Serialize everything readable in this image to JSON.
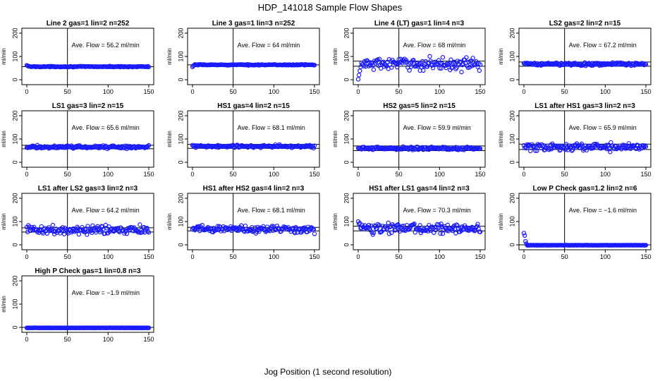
{
  "figure": {
    "title": "HDP_141018  Sample Flow Shapes",
    "xlabel": "Jog Position (1 second resolution)"
  },
  "chart_data": [
    {
      "type": "scatter",
      "title": "Line 2 gas=1 lin=2 n=252",
      "annotation": "Ave. Flow =  56.2  ml/min",
      "ylabel": "ml/min",
      "xlim": [
        0,
        150
      ],
      "ylim": [
        0,
        200
      ],
      "xticks": [
        0,
        50,
        100,
        150
      ],
      "yticks": [
        0,
        100,
        200
      ],
      "vline_x": 50,
      "hlines": [
        56.2
      ],
      "pattern": {
        "base": 56.2,
        "noise": 2,
        "start_values": [
          62,
          60,
          58
        ]
      }
    },
    {
      "type": "scatter",
      "title": "Line 3 gas=1 lin=3 n=252",
      "annotation": "Ave. Flow =  64  ml/min",
      "ylabel": "ml/min",
      "xlim": [
        0,
        150
      ],
      "ylim": [
        0,
        200
      ],
      "xticks": [
        0,
        50,
        100,
        150
      ],
      "yticks": [
        0,
        100,
        200
      ],
      "vline_x": 50,
      "hlines": [
        64
      ],
      "pattern": {
        "base": 64,
        "noise": 2,
        "start_values": [
          55,
          60,
          62
        ]
      }
    },
    {
      "type": "scatter",
      "title": "Line 4 (LT) gas=1 lin=4 n=3",
      "annotation": "Ave. Flow =  68  ml/min",
      "ylabel": "ml/min",
      "xlim": [
        0,
        150
      ],
      "ylim": [
        0,
        200
      ],
      "xticks": [
        0,
        50,
        100,
        150
      ],
      "yticks": [
        0,
        100,
        200
      ],
      "vline_x": 50,
      "hlines": [
        80,
        58
      ],
      "pattern": {
        "base": 68,
        "noise": 28,
        "start_values": [
          2,
          20,
          38,
          55
        ]
      }
    },
    {
      "type": "scatter",
      "title": "LS2 gas=2 lin=2 n=15",
      "annotation": "Ave. Flow =  67.2  ml/min",
      "ylabel": "ml/min",
      "xlim": [
        0,
        150
      ],
      "ylim": [
        0,
        200
      ],
      "xticks": [
        0,
        50,
        100,
        150
      ],
      "yticks": [
        0,
        100,
        200
      ],
      "vline_x": 50,
      "hlines": [
        76,
        58
      ],
      "pattern": {
        "base": 67.2,
        "noise": 7,
        "start_values": []
      }
    },
    {
      "type": "scatter",
      "title": "LS1 gas=3 lin=2 n=15",
      "annotation": "Ave. Flow =  65.6  ml/min",
      "ylabel": "ml/min",
      "xlim": [
        0,
        150
      ],
      "ylim": [
        0,
        200
      ],
      "xticks": [
        0,
        50,
        100,
        150
      ],
      "yticks": [
        0,
        100,
        200
      ],
      "vline_x": 50,
      "hlines": [
        73,
        58
      ],
      "pattern": {
        "base": 65.6,
        "noise": 7,
        "start_values": []
      }
    },
    {
      "type": "scatter",
      "title": "HS1 gas=4 lin=2 n=15",
      "annotation": "Ave. Flow =  68.1  ml/min",
      "ylabel": "ml/min",
      "xlim": [
        0,
        150
      ],
      "ylim": [
        0,
        200
      ],
      "xticks": [
        0,
        50,
        100,
        150
      ],
      "yticks": [
        0,
        100,
        200
      ],
      "vline_x": 50,
      "hlines": [
        77,
        60
      ],
      "pattern": {
        "base": 68.1,
        "noise": 7,
        "start_values": []
      }
    },
    {
      "type": "scatter",
      "title": "HS2 gas=5 lin=2 n=15",
      "annotation": "Ave. Flow =  59.9  ml/min",
      "ylabel": "ml/min",
      "xlim": [
        0,
        150
      ],
      "ylim": [
        0,
        200
      ],
      "xticks": [
        0,
        50,
        100,
        150
      ],
      "yticks": [
        0,
        100,
        200
      ],
      "vline_x": 50,
      "hlines": [
        70,
        50
      ],
      "pattern": {
        "base": 59.9,
        "noise": 7,
        "start_values": []
      }
    },
    {
      "type": "scatter",
      "title": "LS1 after HS1 gas=3 lin=2 n=3",
      "annotation": "Ave. Flow =  65.9  ml/min",
      "ylabel": "ml/min",
      "xlim": [
        0,
        150
      ],
      "ylim": [
        0,
        200
      ],
      "xticks": [
        0,
        50,
        100,
        150
      ],
      "yticks": [
        0,
        100,
        200
      ],
      "vline_x": 50,
      "hlines": [
        78,
        55
      ],
      "pattern": {
        "base": 65.9,
        "noise": 18,
        "start_values": []
      }
    },
    {
      "type": "scatter",
      "title": "LS1 after LS2 gas=3 lin=2 n=3",
      "annotation": "Ave. Flow =  64.2  ml/min",
      "ylabel": "ml/min",
      "xlim": [
        0,
        150
      ],
      "ylim": [
        0,
        200
      ],
      "xticks": [
        0,
        50,
        100,
        150
      ],
      "yticks": [
        0,
        100,
        200
      ],
      "vline_x": 50,
      "hlines": [
        73,
        55
      ],
      "pattern": {
        "base": 64.2,
        "noise": 20,
        "start_values": []
      }
    },
    {
      "type": "scatter",
      "title": "HS1 after HS2 gas=4 lin=2 n=3",
      "annotation": "Ave. Flow =  68.1  ml/min",
      "ylabel": "ml/min",
      "xlim": [
        0,
        150
      ],
      "ylim": [
        0,
        200
      ],
      "xticks": [
        0,
        50,
        100,
        150
      ],
      "yticks": [
        0,
        100,
        200
      ],
      "vline_x": 50,
      "hlines": [
        75,
        60
      ],
      "pattern": {
        "base": 68.1,
        "noise": 18,
        "start_values": []
      }
    },
    {
      "type": "scatter",
      "title": "HS1 after LS1 gas=4 lin=2 n=3",
      "annotation": "Ave. Flow =  70.3  ml/min",
      "ylabel": "ml/min",
      "xlim": [
        0,
        150
      ],
      "ylim": [
        0,
        200
      ],
      "xticks": [
        0,
        50,
        100,
        150
      ],
      "yticks": [
        0,
        100,
        200
      ],
      "vline_x": 50,
      "hlines": [
        80,
        60
      ],
      "pattern": {
        "base": 70.3,
        "noise": 22,
        "start_values": [
          100,
          90
        ]
      }
    },
    {
      "type": "scatter",
      "title": "Low P Check gas=1.2 lin=2 n=6",
      "annotation": "Ave. Flow =  −1.6  ml/min",
      "ylabel": "ml/min",
      "xlim": [
        0,
        150
      ],
      "ylim": [
        0,
        200
      ],
      "xticks": [
        0,
        50,
        100,
        150
      ],
      "yticks": [
        0,
        100,
        200
      ],
      "vline_x": 50,
      "hlines": [
        0
      ],
      "pattern": {
        "base": -1.6,
        "noise": 0.5,
        "start_values": [
          50,
          40,
          15,
          5
        ]
      }
    },
    {
      "type": "scatter",
      "title": "High P Check gas=1 lin=0.8 n=3",
      "annotation": "Ave. Flow =  −1.9  ml/min",
      "ylabel": "ml/min",
      "xlim": [
        0,
        150
      ],
      "ylim": [
        0,
        200
      ],
      "xticks": [
        0,
        50,
        100,
        150
      ],
      "yticks": [
        0,
        100,
        200
      ],
      "vline_x": 50,
      "hlines": [
        0
      ],
      "pattern": {
        "base": -1.9,
        "noise": 0.5,
        "start_values": []
      }
    }
  ]
}
